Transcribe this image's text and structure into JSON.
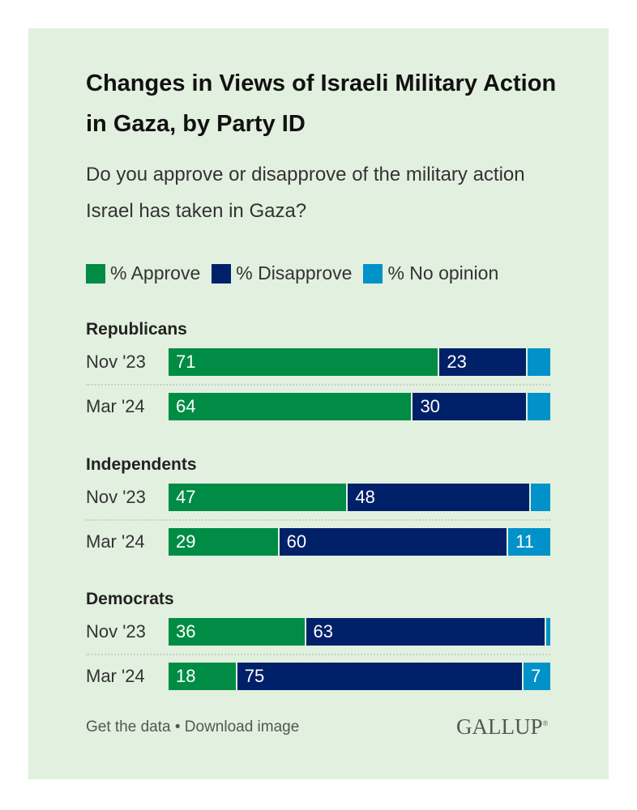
{
  "chart_data": {
    "type": "bar",
    "orientation": "horizontal-stacked-100",
    "title": "Changes in Views of Israeli Military Action in Gaza, by Party ID",
    "subtitle": "Do you approve or disapprove of the military action Israel has taken in Gaza?",
    "legend": [
      {
        "name": "% Approve",
        "color": "#008c45"
      },
      {
        "name": "% Disapprove",
        "color": "#002169"
      },
      {
        "name": "% No opinion",
        "color": "#0092c8"
      }
    ],
    "legend_placement": "top-left",
    "groups": [
      {
        "label": "Republicans",
        "rows": [
          {
            "label": "Nov '23",
            "values": [
              71,
              23,
              6
            ],
            "labels": [
              "71",
              "23",
              ""
            ]
          },
          {
            "label": "Mar '24",
            "values": [
              64,
              30,
              6
            ],
            "labels": [
              "64",
              "30",
              ""
            ]
          }
        ]
      },
      {
        "label": "Independents",
        "rows": [
          {
            "label": "Nov '23",
            "values": [
              47,
              48,
              5
            ],
            "labels": [
              "47",
              "48",
              ""
            ]
          },
          {
            "label": "Mar '24",
            "values": [
              29,
              60,
              11
            ],
            "labels": [
              "29",
              "60",
              "11"
            ]
          }
        ]
      },
      {
        "label": "Democrats",
        "rows": [
          {
            "label": "Nov '23",
            "values": [
              36,
              63,
              1
            ],
            "labels": [
              "36",
              "63",
              ""
            ]
          },
          {
            "label": "Mar '24",
            "values": [
              18,
              75,
              7
            ],
            "labels": [
              "18",
              "75",
              "7"
            ]
          }
        ]
      }
    ]
  },
  "footer": {
    "links": "Get the data • Download image",
    "logo": "GALLUP"
  }
}
